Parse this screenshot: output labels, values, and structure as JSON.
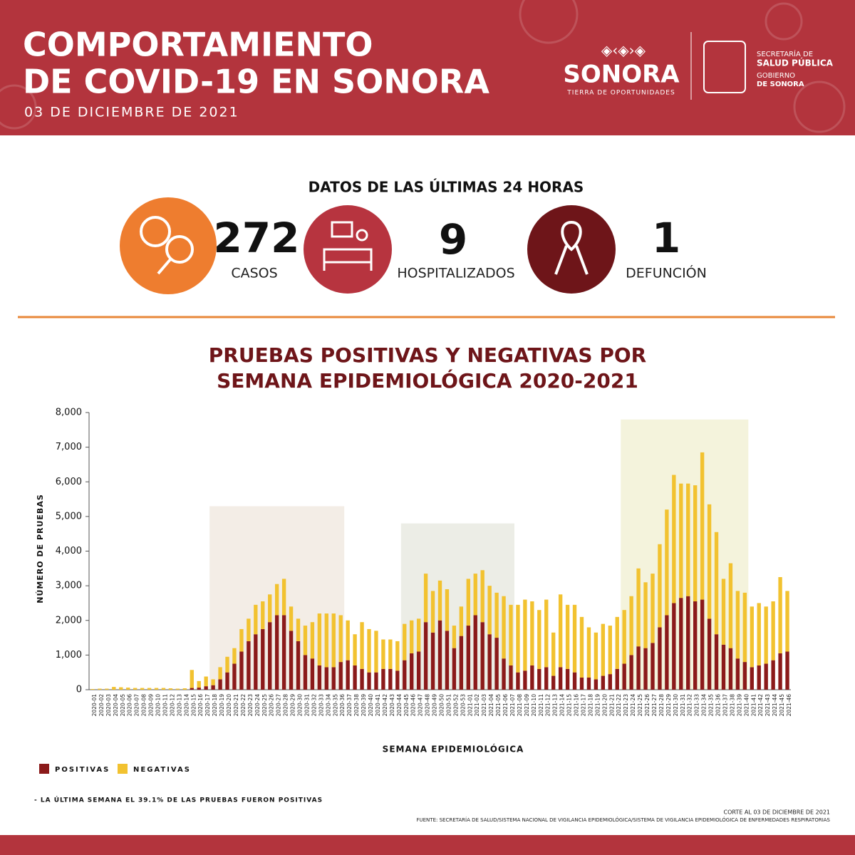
{
  "header": {
    "title_line1": "COMPORTAMIENTO",
    "title_line2": "DE COVID-19 EN SONORA",
    "date": "03 DE DICIEMBRE DE 2021",
    "logo_name": "SONORA",
    "logo_tagline": "TIERRA DE OPORTUNIDADES",
    "dept_line1": "SECRETARÍA DE",
    "dept_line2": "SALUD PÚBLICA",
    "gov_line1": "GOBIERNO",
    "gov_line2": "DE SONORA"
  },
  "stats": {
    "title": "DATOS DE LAS ÚLTIMAS 24 HORAS",
    "items": [
      {
        "value": 272,
        "label": "CASOS"
      },
      {
        "value": 9,
        "label": "HOSPITALIZADOS"
      },
      {
        "value": 1,
        "label": "DEFUNCIÓN"
      }
    ]
  },
  "chart_data": {
    "type": "stacked_bar",
    "title_line1": "PRUEBAS POSITIVAS Y NEGATIVAS POR",
    "title_line2": "SEMANA EPIDEMIOLÓGICA 2020-2021",
    "ylabel": "NÚMERO DE PRUEBAS",
    "xlabel": "SEMANA EPIDEMIOLÓGICA",
    "categories": [
      "2020-01",
      "2020-02",
      "2020-03",
      "2020-04",
      "2020-05",
      "2020-06",
      "2020-07",
      "2020-08",
      "2020-09",
      "2020-10",
      "2020-11",
      "2020-12",
      "2020-13",
      "2020-14",
      "2020-15",
      "2020-16",
      "2020-17",
      "2020-18",
      "2020-19",
      "2020-20",
      "2020-21",
      "2020-22",
      "2020-23",
      "2020-24",
      "2020-25",
      "2020-26",
      "2020-27",
      "2020-28",
      "2020-29",
      "2020-30",
      "2020-31",
      "2020-32",
      "2020-33",
      "2020-34",
      "2020-35",
      "2020-36",
      "2020-37",
      "2020-38",
      "2020-39",
      "2020-40",
      "2020-41",
      "2020-42",
      "2020-43",
      "2020-44",
      "2020-45",
      "2020-46",
      "2020-47",
      "2020-48",
      "2020-49",
      "2020-50",
      "2020-51",
      "2020-52",
      "2020-53",
      "2021-01",
      "2021-02",
      "2021-03",
      "2021-04",
      "2021-05",
      "2021-06",
      "2021-07",
      "2021-08",
      "2021-09",
      "2021-10",
      "2021-11",
      "2021-12",
      "2021-13",
      "2021-14",
      "2021-15",
      "2021-16",
      "2021-17",
      "2021-18",
      "2021-19",
      "2021-20",
      "2021-21",
      "2021-22",
      "2021-23",
      "2021-24",
      "2021-25",
      "2021-26",
      "2021-27",
      "2021-28",
      "2021-29",
      "2021-30",
      "2021-31",
      "2021-32",
      "2021-33",
      "2021-34",
      "2021-35",
      "2021-36",
      "2021-37",
      "2021-38",
      "2021-39",
      "2021-40",
      "2021-41",
      "2021-42",
      "2021-43",
      "2021-44",
      "2021-45",
      "2021-46"
    ],
    "series": [
      {
        "name": "POSITIVAS",
        "color": "#8b1a1a",
        "values": [
          0,
          0,
          0,
          0,
          0,
          0,
          0,
          0,
          0,
          0,
          0,
          0,
          0,
          0,
          50,
          60,
          100,
          130,
          300,
          500,
          750,
          1100,
          1400,
          1600,
          1750,
          1950,
          2150,
          2150,
          1700,
          1400,
          1000,
          900,
          700,
          650,
          650,
          800,
          850,
          700,
          600,
          500,
          500,
          600,
          600,
          550,
          850,
          1050,
          1100,
          1950,
          1650,
          2000,
          1700,
          1200,
          1550,
          1850,
          2150,
          1950,
          1600,
          1500,
          900,
          700,
          500,
          550,
          700,
          600,
          650,
          400,
          650,
          600,
          500,
          350,
          350,
          300,
          400,
          450,
          600,
          750,
          1000,
          1250,
          1200,
          1350,
          1800,
          2150,
          2500,
          2650,
          2700,
          2550,
          2600,
          2050,
          1600,
          1300,
          1200,
          900,
          800,
          650,
          700,
          750,
          850,
          1050,
          1100
        ]
      },
      {
        "name": "NEGATIVAS",
        "color": "#f2c230",
        "values": [
          20,
          30,
          30,
          80,
          70,
          60,
          50,
          50,
          50,
          50,
          50,
          40,
          30,
          40,
          520,
          190,
          280,
          170,
          350,
          450,
          450,
          650,
          650,
          850,
          800,
          800,
          900,
          1050,
          700,
          650,
          850,
          1050,
          1500,
          1550,
          1550,
          1350,
          1150,
          900,
          1350,
          1250,
          1200,
          850,
          850,
          850,
          1050,
          950,
          950,
          1400,
          1200,
          1150,
          1200,
          650,
          850,
          1350,
          1200,
          1500,
          1400,
          1300,
          1800,
          1750,
          1950,
          2050,
          1850,
          1700,
          1950,
          1250,
          2100,
          1850,
          1950,
          1750,
          1450,
          1350,
          1500,
          1400,
          1500,
          1550,
          1700,
          2250,
          1900,
          2000,
          2400,
          3050,
          3700,
          3300,
          3250,
          3350,
          4250,
          3300,
          2950,
          1900,
          2450,
          1950,
          2000,
          1750,
          1800,
          1650,
          1700,
          2200,
          1750
        ]
      }
    ],
    "ylim": [
      0,
      8000
    ],
    "yticks": [
      0,
      {
        "value": 1000,
        "label": "1,000"
      },
      {
        "value": 2000,
        "label": "2,000"
      },
      {
        "value": 3000,
        "label": "3,000"
      },
      {
        "value": 4000,
        "label": "4,000"
      },
      {
        "value": 5000,
        "label": "5,000"
      },
      {
        "value": 6000,
        "label": "6,000"
      },
      {
        "value": 7000,
        "label": "7,000"
      },
      {
        "value": 8000,
        "label": "8,000"
      }
    ],
    "note": "- LA ÚLTIMA SEMANA EL 39.1% DE LAS PRUEBAS FUERON POSITIVAS"
  },
  "footer": {
    "cutoff": "CORTE AL 03  DE DICIEMBRE DE 2021",
    "source": "FUENTE: SECRETARÍA DE SALUD/SISTEMA NACIONAL DE VIGILANCIA EPIDEMIOLÓGICA/SISTEMA DE VIGILANCIA EPIDEMIOLÓGICA DE ENFERMEDADES RESPIRATORIAS"
  }
}
